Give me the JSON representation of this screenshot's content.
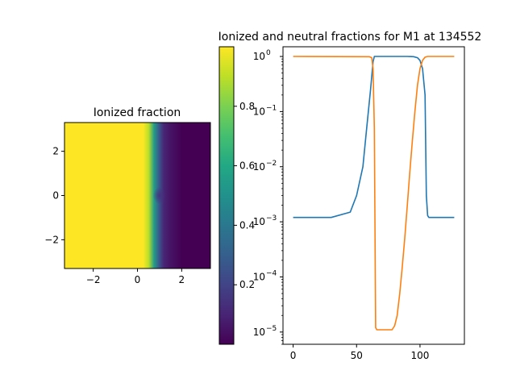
{
  "chart_data": [
    {
      "type": "heatmap",
      "title": "Ionized fraction",
      "xlabel": "",
      "ylabel": "",
      "xlim": [
        -3.3,
        3.3
      ],
      "ylim": [
        -3.3,
        3.3
      ],
      "xticks": [
        -2,
        0,
        2
      ],
      "yticks": [
        -2,
        0,
        2
      ],
      "xtick_labels": [
        "−2",
        "0",
        "2"
      ],
      "ytick_labels": [
        "−2",
        "0",
        "2"
      ],
      "colormap": "viridis",
      "colorbar": {
        "range": [
          0.0,
          1.0
        ],
        "ticks": [
          0.2,
          0.4,
          0.6,
          0.8
        ],
        "tick_labels": [
          "0.2",
          "0.4",
          "0.6",
          "0.8"
        ]
      },
      "profile_x": [
        -3.3,
        0.25,
        0.5,
        0.75,
        1.0,
        1.2,
        1.5,
        2.0,
        3.3
      ],
      "profile_value": [
        1.0,
        1.0,
        0.9,
        0.55,
        0.25,
        0.1,
        0.05,
        0.0,
        0.0
      ],
      "shadow_center": [
        1.0,
        0.0
      ],
      "shadow_radius": 0.3
    },
    {
      "type": "line",
      "title": "Ionized and neutral fractions for M1 at 134552",
      "xlabel": "",
      "ylabel": "",
      "xlim": [
        -8,
        135
      ],
      "ylim": [
        6e-06,
        1.5
      ],
      "yscale": "log",
      "xticks": [
        0,
        50,
        100
      ],
      "xtick_labels": [
        "0",
        "50",
        "100"
      ],
      "ytick_exponents": [
        -5,
        -4,
        -3,
        -2,
        -1,
        0
      ],
      "ytick_labels": [
        "10",
        "10",
        "10",
        "10",
        "10",
        "10"
      ],
      "ytick_superscripts": [
        "−5",
        "−4",
        "−3",
        "−2",
        "−1",
        "0"
      ],
      "series": [
        {
          "color": "#1f77b4",
          "x": [
            0,
            30,
            45,
            50,
            55,
            58,
            61,
            63,
            64,
            65,
            90,
            95,
            98,
            100,
            102,
            104,
            105,
            106,
            107,
            127
          ],
          "y": [
            0.0012,
            0.0012,
            0.0015,
            0.003,
            0.01,
            0.05,
            0.25,
            0.8,
            1.0,
            1.0,
            1.0,
            0.99,
            0.95,
            0.85,
            0.6,
            0.2,
            0.003,
            0.0013,
            0.0012,
            0.0012
          ]
        },
        {
          "color": "#ff7f0e",
          "x": [
            0,
            60,
            62,
            63,
            64,
            65,
            66,
            78,
            80,
            82,
            84,
            86,
            88,
            90,
            92,
            94,
            96,
            98,
            100,
            102,
            104,
            106,
            127
          ],
          "y": [
            1.0,
            0.99,
            0.95,
            0.6,
            0.05,
            1.2e-05,
            1.1e-05,
            1.1e-05,
            1.3e-05,
            2e-05,
            5e-05,
            0.00015,
            0.0005,
            0.002,
            0.008,
            0.03,
            0.1,
            0.3,
            0.6,
            0.85,
            0.97,
            1.0,
            1.0
          ]
        }
      ]
    }
  ]
}
